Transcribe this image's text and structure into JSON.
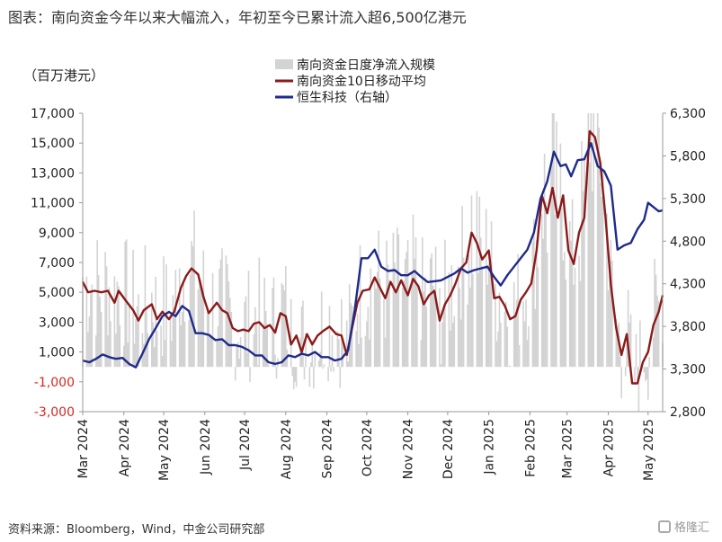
{
  "header": {
    "title": "图表：南向资金今年以来大幅流入，年初至今已累计流入超6,500亿港元"
  },
  "footer": {
    "source": "资料来源：Bloomberg，Wind，中金公司研究部",
    "watermark": "格隆汇"
  },
  "chart_data": {
    "type": "bar+line",
    "y_left_unit": "（百万港元）",
    "legend": [
      "南向资金日度净流入规模",
      "南向资金10日移动平均",
      "恒生科技（右轴）"
    ],
    "legend_placement": "top-center",
    "colors": {
      "bars": "#d3d3d3",
      "ma10": "#8b1a1a",
      "hstech": "#1f2a8a",
      "negative_ticks": "#d9261c"
    },
    "y_left": {
      "min": -3000,
      "max": 17000,
      "ticks": [
        "-3,000",
        "-1,000",
        "1,000",
        "3,000",
        "5,000",
        "7,000",
        "9,000",
        "11,000",
        "13,000",
        "15,000",
        "17,000"
      ]
    },
    "y_right": {
      "min": 2800,
      "max": 6300,
      "ticks": [
        "2,800",
        "3,300",
        "3,800",
        "4,300",
        "4,800",
        "5,300",
        "5,800",
        "6,300"
      ]
    },
    "x_ticks": [
      "Mar 2024",
      "Apr 2024",
      "May 2024",
      "Jun 2024",
      "Jul 2024",
      "Aug 2024",
      "Sep 2024",
      "Oct 2024",
      "Nov 2024",
      "Dec 2024",
      "Jan 2025",
      "Feb 2025",
      "Mar 2025",
      "Apr 2025",
      "May 2025"
    ],
    "x_range": [
      "2024-03-01",
      "2025-05-12"
    ],
    "ma10_series": [
      [
        "2024-03-01",
        5700
      ],
      [
        "2024-03-05",
        5000
      ],
      [
        "2024-03-10",
        5100
      ],
      [
        "2024-03-15",
        5000
      ],
      [
        "2024-03-20",
        5100
      ],
      [
        "2024-03-25",
        4300
      ],
      [
        "2024-03-28",
        5100
      ],
      [
        "2024-04-02",
        4500
      ],
      [
        "2024-04-08",
        3800
      ],
      [
        "2024-04-12",
        3100
      ],
      [
        "2024-04-16",
        3800
      ],
      [
        "2024-04-22",
        4200
      ],
      [
        "2024-04-26",
        3200
      ],
      [
        "2024-04-30",
        3700
      ],
      [
        "2024-05-05",
        3200
      ],
      [
        "2024-05-09",
        3700
      ],
      [
        "2024-05-14",
        5300
      ],
      [
        "2024-05-18",
        6100
      ],
      [
        "2024-05-22",
        6600
      ],
      [
        "2024-05-27",
        6200
      ],
      [
        "2024-05-31",
        4700
      ],
      [
        "2024-06-04",
        3600
      ],
      [
        "2024-06-10",
        4300
      ],
      [
        "2024-06-14",
        3800
      ],
      [
        "2024-06-18",
        3600
      ],
      [
        "2024-06-22",
        2600
      ],
      [
        "2024-06-26",
        2400
      ],
      [
        "2024-06-30",
        2500
      ],
      [
        "2024-07-04",
        2400
      ],
      [
        "2024-07-08",
        2900
      ],
      [
        "2024-07-12",
        3000
      ],
      [
        "2024-07-16",
        2600
      ],
      [
        "2024-07-20",
        2800
      ],
      [
        "2024-07-24",
        2300
      ],
      [
        "2024-07-28",
        3600
      ],
      [
        "2024-08-01",
        3400
      ],
      [
        "2024-08-05",
        1500
      ],
      [
        "2024-08-09",
        2100
      ],
      [
        "2024-08-13",
        1000
      ],
      [
        "2024-08-17",
        2200
      ],
      [
        "2024-08-21",
        1500
      ],
      [
        "2024-08-25",
        2100
      ],
      [
        "2024-08-29",
        2400
      ],
      [
        "2024-09-03",
        2700
      ],
      [
        "2024-09-08",
        2200
      ],
      [
        "2024-09-12",
        2100
      ],
      [
        "2024-09-16",
        800
      ],
      [
        "2024-09-20",
        2600
      ],
      [
        "2024-09-24",
        4300
      ],
      [
        "2024-09-28",
        5100
      ],
      [
        "2024-10-03",
        5200
      ],
      [
        "2024-10-07",
        6000
      ],
      [
        "2024-10-11",
        5300
      ],
      [
        "2024-10-15",
        4600
      ],
      [
        "2024-10-19",
        5700
      ],
      [
        "2024-10-23",
        5000
      ],
      [
        "2024-10-27",
        5800
      ],
      [
        "2024-11-01",
        4800
      ],
      [
        "2024-11-05",
        5900
      ],
      [
        "2024-11-09",
        5400
      ],
      [
        "2024-11-13",
        4200
      ],
      [
        "2024-11-17",
        4800
      ],
      [
        "2024-11-21",
        5100
      ],
      [
        "2024-11-25",
        3100
      ],
      [
        "2024-11-29",
        4200
      ],
      [
        "2024-12-03",
        4800
      ],
      [
        "2024-12-07",
        5600
      ],
      [
        "2024-12-11",
        6600
      ],
      [
        "2024-12-15",
        7000
      ],
      [
        "2024-12-19",
        9000
      ],
      [
        "2024-12-23",
        8300
      ],
      [
        "2024-12-27",
        7200
      ],
      [
        "2025-01-01",
        7800
      ],
      [
        "2025-01-05",
        4600
      ],
      [
        "2025-01-09",
        4700
      ],
      [
        "2025-01-13",
        4100
      ],
      [
        "2025-01-17",
        3200
      ],
      [
        "2025-01-21",
        3400
      ],
      [
        "2025-01-25",
        4500
      ],
      [
        "2025-01-29",
        5000
      ],
      [
        "2025-02-02",
        5600
      ],
      [
        "2025-02-06",
        7800
      ],
      [
        "2025-02-10",
        11500
      ],
      [
        "2025-02-14",
        10300
      ],
      [
        "2025-02-18",
        12000
      ],
      [
        "2025-02-22",
        10000
      ],
      [
        "2025-02-26",
        11500
      ],
      [
        "2025-03-02",
        7800
      ],
      [
        "2025-03-06",
        6900
      ],
      [
        "2025-03-10",
        9000
      ],
      [
        "2025-03-14",
        10000
      ],
      [
        "2025-03-18",
        15800
      ],
      [
        "2025-03-22",
        15400
      ],
      [
        "2025-03-26",
        13700
      ],
      [
        "2025-03-30",
        10000
      ],
      [
        "2025-04-03",
        5500
      ],
      [
        "2025-04-07",
        2600
      ],
      [
        "2025-04-11",
        800
      ],
      [
        "2025-04-15",
        2200
      ],
      [
        "2025-04-19",
        -1100
      ],
      [
        "2025-04-23",
        -1100
      ],
      [
        "2025-04-27",
        300
      ],
      [
        "2025-05-01",
        1000
      ],
      [
        "2025-05-05",
        2800
      ],
      [
        "2025-05-09",
        3700
      ],
      [
        "2025-05-12",
        4800
      ]
    ],
    "hstech_series": [
      [
        "2024-03-01",
        3400
      ],
      [
        "2024-03-06",
        3380
      ],
      [
        "2024-03-11",
        3420
      ],
      [
        "2024-03-16",
        3470
      ],
      [
        "2024-03-21",
        3440
      ],
      [
        "2024-03-26",
        3420
      ],
      [
        "2024-03-31",
        3430
      ],
      [
        "2024-04-05",
        3360
      ],
      [
        "2024-04-10",
        3320
      ],
      [
        "2024-04-15",
        3480
      ],
      [
        "2024-04-20",
        3650
      ],
      [
        "2024-04-25",
        3780
      ],
      [
        "2024-04-30",
        3920
      ],
      [
        "2024-05-05",
        3970
      ],
      [
        "2024-05-10",
        3920
      ],
      [
        "2024-05-15",
        4040
      ],
      [
        "2024-05-20",
        3980
      ],
      [
        "2024-05-25",
        3720
      ],
      [
        "2024-05-30",
        3720
      ],
      [
        "2024-06-04",
        3700
      ],
      [
        "2024-06-09",
        3640
      ],
      [
        "2024-06-14",
        3650
      ],
      [
        "2024-06-19",
        3580
      ],
      [
        "2024-06-24",
        3580
      ],
      [
        "2024-06-29",
        3560
      ],
      [
        "2024-07-04",
        3520
      ],
      [
        "2024-07-09",
        3460
      ],
      [
        "2024-07-14",
        3460
      ],
      [
        "2024-07-19",
        3380
      ],
      [
        "2024-07-24",
        3360
      ],
      [
        "2024-07-29",
        3380
      ],
      [
        "2024-08-03",
        3460
      ],
      [
        "2024-08-08",
        3440
      ],
      [
        "2024-08-13",
        3480
      ],
      [
        "2024-08-18",
        3460
      ],
      [
        "2024-08-23",
        3500
      ],
      [
        "2024-08-28",
        3440
      ],
      [
        "2024-09-02",
        3440
      ],
      [
        "2024-09-07",
        3400
      ],
      [
        "2024-09-12",
        3420
      ],
      [
        "2024-09-17",
        3520
      ],
      [
        "2024-09-22",
        4000
      ],
      [
        "2024-09-27",
        4600
      ],
      [
        "2024-10-02",
        4600
      ],
      [
        "2024-10-07",
        4700
      ],
      [
        "2024-10-12",
        4500
      ],
      [
        "2024-10-17",
        4450
      ],
      [
        "2024-10-22",
        4460
      ],
      [
        "2024-10-27",
        4400
      ],
      [
        "2024-11-01",
        4400
      ],
      [
        "2024-11-06",
        4450
      ],
      [
        "2024-11-11",
        4380
      ],
      [
        "2024-11-16",
        4320
      ],
      [
        "2024-11-21",
        4330
      ],
      [
        "2024-11-26",
        4340
      ],
      [
        "2024-12-01",
        4380
      ],
      [
        "2024-12-06",
        4420
      ],
      [
        "2024-12-11",
        4480
      ],
      [
        "2024-12-16",
        4430
      ],
      [
        "2024-12-21",
        4460
      ],
      [
        "2024-12-26",
        4480
      ],
      [
        "2024-12-31",
        4500
      ],
      [
        "2025-01-05",
        4380
      ],
      [
        "2025-01-10",
        4280
      ],
      [
        "2025-01-15",
        4400
      ],
      [
        "2025-01-20",
        4500
      ],
      [
        "2025-01-25",
        4600
      ],
      [
        "2025-01-30",
        4700
      ],
      [
        "2025-02-04",
        4900
      ],
      [
        "2025-02-09",
        5300
      ],
      [
        "2025-02-14",
        5500
      ],
      [
        "2025-02-19",
        5850
      ],
      [
        "2025-02-24",
        5680
      ],
      [
        "2025-02-28",
        5700
      ],
      [
        "2025-03-04",
        5560
      ],
      [
        "2025-03-09",
        5750
      ],
      [
        "2025-03-14",
        5760
      ],
      [
        "2025-03-19",
        5950
      ],
      [
        "2025-03-24",
        5680
      ],
      [
        "2025-03-29",
        5620
      ],
      [
        "2025-04-03",
        5450
      ],
      [
        "2025-04-08",
        4700
      ],
      [
        "2025-04-13",
        4750
      ],
      [
        "2025-04-18",
        4780
      ],
      [
        "2025-04-23",
        4940
      ],
      [
        "2025-04-28",
        5050
      ],
      [
        "2025-05-01",
        5250
      ],
      [
        "2025-05-05",
        5200
      ],
      [
        "2025-05-09",
        5150
      ],
      [
        "2025-05-12",
        5160
      ]
    ]
  }
}
